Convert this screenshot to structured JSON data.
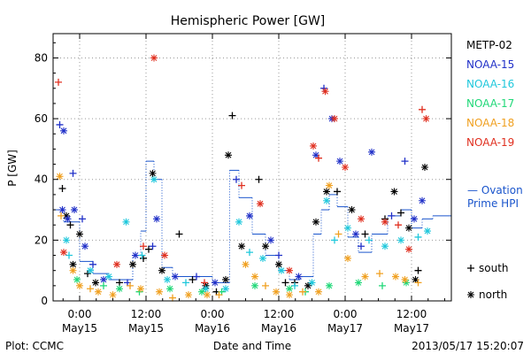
{
  "chart_data": {
    "type": "scatter",
    "title": "Hemispheric Power [GW]",
    "ylabel": "P [GW]",
    "xlabel": "Date and Time",
    "ylim": [
      0,
      88
    ],
    "xlim": [
      -0.2,
      2.8
    ],
    "y_ticks": [
      0,
      20,
      40,
      60,
      80
    ],
    "x_ticks": [
      {
        "x": 0.0,
        "time": "0:00",
        "date": "May15"
      },
      {
        "x": 0.5,
        "time": "12:00",
        "date": "May15"
      },
      {
        "x": 1.0,
        "time": "0:00",
        "date": "May16"
      },
      {
        "x": 1.5,
        "time": "12:00",
        "date": "May16"
      },
      {
        "x": 2.0,
        "time": "0:00",
        "date": "May17"
      },
      {
        "x": 2.5,
        "time": "12:00",
        "date": "May17"
      }
    ],
    "marker_key": [
      {
        "marker": "+",
        "label": "south"
      },
      {
        "marker": "*",
        "label": "north"
      }
    ],
    "series": [
      {
        "name": "METP-02",
        "color": "#000000",
        "points": [
          [
            -0.13,
            37,
            "+"
          ],
          [
            -0.1,
            28,
            "*"
          ],
          [
            -0.07,
            25,
            "+"
          ],
          [
            0.0,
            22,
            "*"
          ],
          [
            -0.05,
            12,
            "*"
          ],
          [
            0.06,
            9,
            "+"
          ],
          [
            0.12,
            6,
            "*"
          ],
          [
            0.3,
            6,
            "+"
          ],
          [
            0.4,
            12,
            "*"
          ],
          [
            0.48,
            14,
            "+"
          ],
          [
            0.52,
            17,
            "+"
          ],
          [
            0.55,
            42,
            "*"
          ],
          [
            0.62,
            10,
            "*"
          ],
          [
            0.75,
            22,
            "+"
          ],
          [
            0.85,
            7,
            "+"
          ],
          [
            0.95,
            5,
            "*"
          ],
          [
            1.03,
            3,
            "+"
          ],
          [
            1.1,
            7,
            "*"
          ],
          [
            1.12,
            48,
            "*"
          ],
          [
            1.15,
            61,
            "+"
          ],
          [
            1.22,
            18,
            "*"
          ],
          [
            1.35,
            40,
            "+"
          ],
          [
            1.4,
            18,
            "*"
          ],
          [
            1.5,
            12,
            "*"
          ],
          [
            1.55,
            6,
            "+"
          ],
          [
            1.62,
            6,
            "+"
          ],
          [
            1.72,
            5,
            "*"
          ],
          [
            1.78,
            26,
            "*"
          ],
          [
            1.86,
            36,
            "*"
          ],
          [
            1.94,
            36,
            "+"
          ],
          [
            2.05,
            30,
            "*"
          ],
          [
            2.15,
            22,
            "+"
          ],
          [
            2.3,
            27,
            "+"
          ],
          [
            2.37,
            36,
            "*"
          ],
          [
            2.42,
            29,
            "+"
          ],
          [
            2.48,
            24,
            "*"
          ],
          [
            2.55,
            10,
            "+"
          ],
          [
            2.6,
            44,
            "*"
          ],
          [
            2.53,
            7,
            "*"
          ]
        ]
      },
      {
        "name": "NOAA-15",
        "color": "#2030c8",
        "points": [
          [
            -0.15,
            58,
            "+"
          ],
          [
            -0.12,
            56,
            "*"
          ],
          [
            -0.05,
            42,
            "+"
          ],
          [
            -0.13,
            30,
            "*"
          ],
          [
            -0.04,
            30,
            "*"
          ],
          [
            0.02,
            27,
            "+"
          ],
          [
            -0.09,
            27,
            "*"
          ],
          [
            0.04,
            18,
            "*"
          ],
          [
            0.1,
            12,
            "+"
          ],
          [
            0.18,
            7,
            "*"
          ],
          [
            0.36,
            6,
            "+"
          ],
          [
            0.42,
            15,
            "*"
          ],
          [
            0.55,
            18,
            "+"
          ],
          [
            0.58,
            27,
            "*"
          ],
          [
            0.72,
            8,
            "*"
          ],
          [
            0.88,
            8,
            "+"
          ],
          [
            1.02,
            6,
            "*"
          ],
          [
            1.18,
            40,
            "+"
          ],
          [
            1.28,
            28,
            "*"
          ],
          [
            1.44,
            20,
            "*"
          ],
          [
            1.5,
            15,
            "+"
          ],
          [
            1.65,
            8,
            "*"
          ],
          [
            1.78,
            48,
            "*"
          ],
          [
            1.84,
            70,
            "+"
          ],
          [
            1.9,
            60,
            "*"
          ],
          [
            1.96,
            46,
            "*"
          ],
          [
            2.08,
            22,
            "*"
          ],
          [
            2.12,
            18,
            "+"
          ],
          [
            2.2,
            49,
            "*"
          ],
          [
            2.35,
            28,
            "+"
          ],
          [
            2.45,
            46,
            "+"
          ],
          [
            2.52,
            27,
            "*"
          ],
          [
            2.58,
            33,
            "*"
          ]
        ]
      },
      {
        "name": "NOAA-16",
        "color": "#20c8dc",
        "points": [
          [
            -0.1,
            20,
            "*"
          ],
          [
            -0.08,
            15,
            "+"
          ],
          [
            0.08,
            10,
            "*"
          ],
          [
            0.22,
            8,
            "*"
          ],
          [
            0.35,
            26,
            "*"
          ],
          [
            0.47,
            15,
            "+"
          ],
          [
            0.56,
            40,
            "*"
          ],
          [
            0.66,
            7,
            "*"
          ],
          [
            0.8,
            6,
            "+"
          ],
          [
            0.95,
            4,
            "*"
          ],
          [
            1.1,
            4,
            "*"
          ],
          [
            1.2,
            26,
            "*"
          ],
          [
            1.28,
            16,
            "+"
          ],
          [
            1.38,
            14,
            "*"
          ],
          [
            1.52,
            10,
            "*"
          ],
          [
            1.62,
            5,
            "+"
          ],
          [
            1.75,
            6,
            "*"
          ],
          [
            1.86,
            33,
            "*"
          ],
          [
            1.92,
            20,
            "+"
          ],
          [
            2.02,
            24,
            "*"
          ],
          [
            2.18,
            20,
            "+"
          ],
          [
            2.3,
            18,
            "*"
          ],
          [
            2.42,
            20,
            "*"
          ],
          [
            2.55,
            21,
            "+"
          ],
          [
            2.62,
            23,
            "*"
          ]
        ]
      },
      {
        "name": "NOAA-17",
        "color": "#20d878",
        "points": [
          [
            -0.02,
            7,
            "*"
          ],
          [
            0.18,
            5,
            "+"
          ],
          [
            0.3,
            4,
            "*"
          ],
          [
            0.45,
            3,
            "+"
          ],
          [
            0.68,
            4,
            "*"
          ],
          [
            0.92,
            3,
            "*"
          ],
          [
            1.07,
            3,
            "+"
          ],
          [
            1.32,
            5,
            "*"
          ],
          [
            1.58,
            4,
            "*"
          ],
          [
            1.7,
            3,
            "+"
          ],
          [
            1.88,
            5,
            "*"
          ],
          [
            2.1,
            6,
            "*"
          ],
          [
            2.28,
            5,
            "+"
          ],
          [
            2.46,
            6,
            "*"
          ]
        ]
      },
      {
        "name": "NOAA-18",
        "color": "#f0a020",
        "points": [
          [
            -0.15,
            41,
            "*"
          ],
          [
            -0.14,
            28,
            "+"
          ],
          [
            -0.05,
            10,
            "*"
          ],
          [
            0.0,
            5,
            "*"
          ],
          [
            0.08,
            4,
            "+"
          ],
          [
            0.14,
            3,
            "*"
          ],
          [
            0.25,
            2,
            "*"
          ],
          [
            0.38,
            5,
            "+"
          ],
          [
            0.46,
            4,
            "*"
          ],
          [
            0.6,
            3,
            "*"
          ],
          [
            0.7,
            1,
            "+"
          ],
          [
            0.82,
            2,
            "*"
          ],
          [
            0.96,
            2,
            "*"
          ],
          [
            1.05,
            2,
            "+"
          ],
          [
            1.25,
            12,
            "*"
          ],
          [
            1.32,
            8,
            "*"
          ],
          [
            1.4,
            5,
            "+"
          ],
          [
            1.48,
            3,
            "*"
          ],
          [
            1.58,
            2,
            "*"
          ],
          [
            1.68,
            3,
            "+"
          ],
          [
            1.8,
            3,
            "*"
          ],
          [
            1.88,
            38,
            "*"
          ],
          [
            1.95,
            22,
            "+"
          ],
          [
            2.02,
            14,
            "*"
          ],
          [
            2.15,
            8,
            "*"
          ],
          [
            2.26,
            9,
            "+"
          ],
          [
            2.38,
            8,
            "*"
          ],
          [
            2.45,
            7,
            "*"
          ],
          [
            2.55,
            6,
            "+"
          ]
        ]
      },
      {
        "name": "NOAA-19",
        "color": "#e03020",
        "points": [
          [
            -0.16,
            72,
            "+"
          ],
          [
            -0.12,
            16,
            "*"
          ],
          [
            0.28,
            12,
            "*"
          ],
          [
            0.48,
            18,
            "+"
          ],
          [
            0.56,
            80,
            "*"
          ],
          [
            0.64,
            15,
            "*"
          ],
          [
            0.94,
            6,
            "+"
          ],
          [
            1.22,
            38,
            "+"
          ],
          [
            1.36,
            32,
            "*"
          ],
          [
            1.58,
            10,
            "*"
          ],
          [
            1.76,
            51,
            "*"
          ],
          [
            1.8,
            47,
            "+"
          ],
          [
            1.85,
            69,
            "*"
          ],
          [
            1.92,
            60,
            "*"
          ],
          [
            2.0,
            44,
            "*"
          ],
          [
            2.12,
            27,
            "*"
          ],
          [
            2.3,
            26,
            "*"
          ],
          [
            2.4,
            25,
            "+"
          ],
          [
            2.58,
            63,
            "+"
          ],
          [
            2.61,
            60,
            "*"
          ],
          [
            2.48,
            17,
            "*"
          ]
        ]
      }
    ],
    "hpi": {
      "name": "Prime HPI",
      "prefix": "— Ovation",
      "color": "#1a55cc",
      "steps": [
        [
          -0.2,
          30
        ],
        [
          -0.12,
          26
        ],
        [
          0.0,
          13
        ],
        [
          0.1,
          9
        ],
        [
          0.22,
          7
        ],
        [
          0.4,
          15
        ],
        [
          0.46,
          23
        ],
        [
          0.5,
          46
        ],
        [
          0.56,
          40
        ],
        [
          0.62,
          11
        ],
        [
          0.7,
          8
        ],
        [
          0.82,
          8
        ],
        [
          1.0,
          6
        ],
        [
          1.1,
          6
        ],
        [
          1.13,
          43
        ],
        [
          1.2,
          34
        ],
        [
          1.3,
          22
        ],
        [
          1.4,
          15
        ],
        [
          1.5,
          10
        ],
        [
          1.58,
          7
        ],
        [
          1.66,
          8
        ],
        [
          1.76,
          22
        ],
        [
          1.82,
          30
        ],
        [
          1.88,
          35
        ],
        [
          1.94,
          31
        ],
        [
          2.02,
          21
        ],
        [
          2.1,
          16
        ],
        [
          2.2,
          22
        ],
        [
          2.32,
          28
        ],
        [
          2.42,
          30
        ],
        [
          2.5,
          24
        ],
        [
          2.58,
          27
        ],
        [
          2.66,
          28
        ],
        [
          2.8,
          28
        ]
      ]
    }
  },
  "footer": {
    "plot_label": "Plot: CCMC",
    "timestamp": "2013/05/17 15:20:07"
  }
}
